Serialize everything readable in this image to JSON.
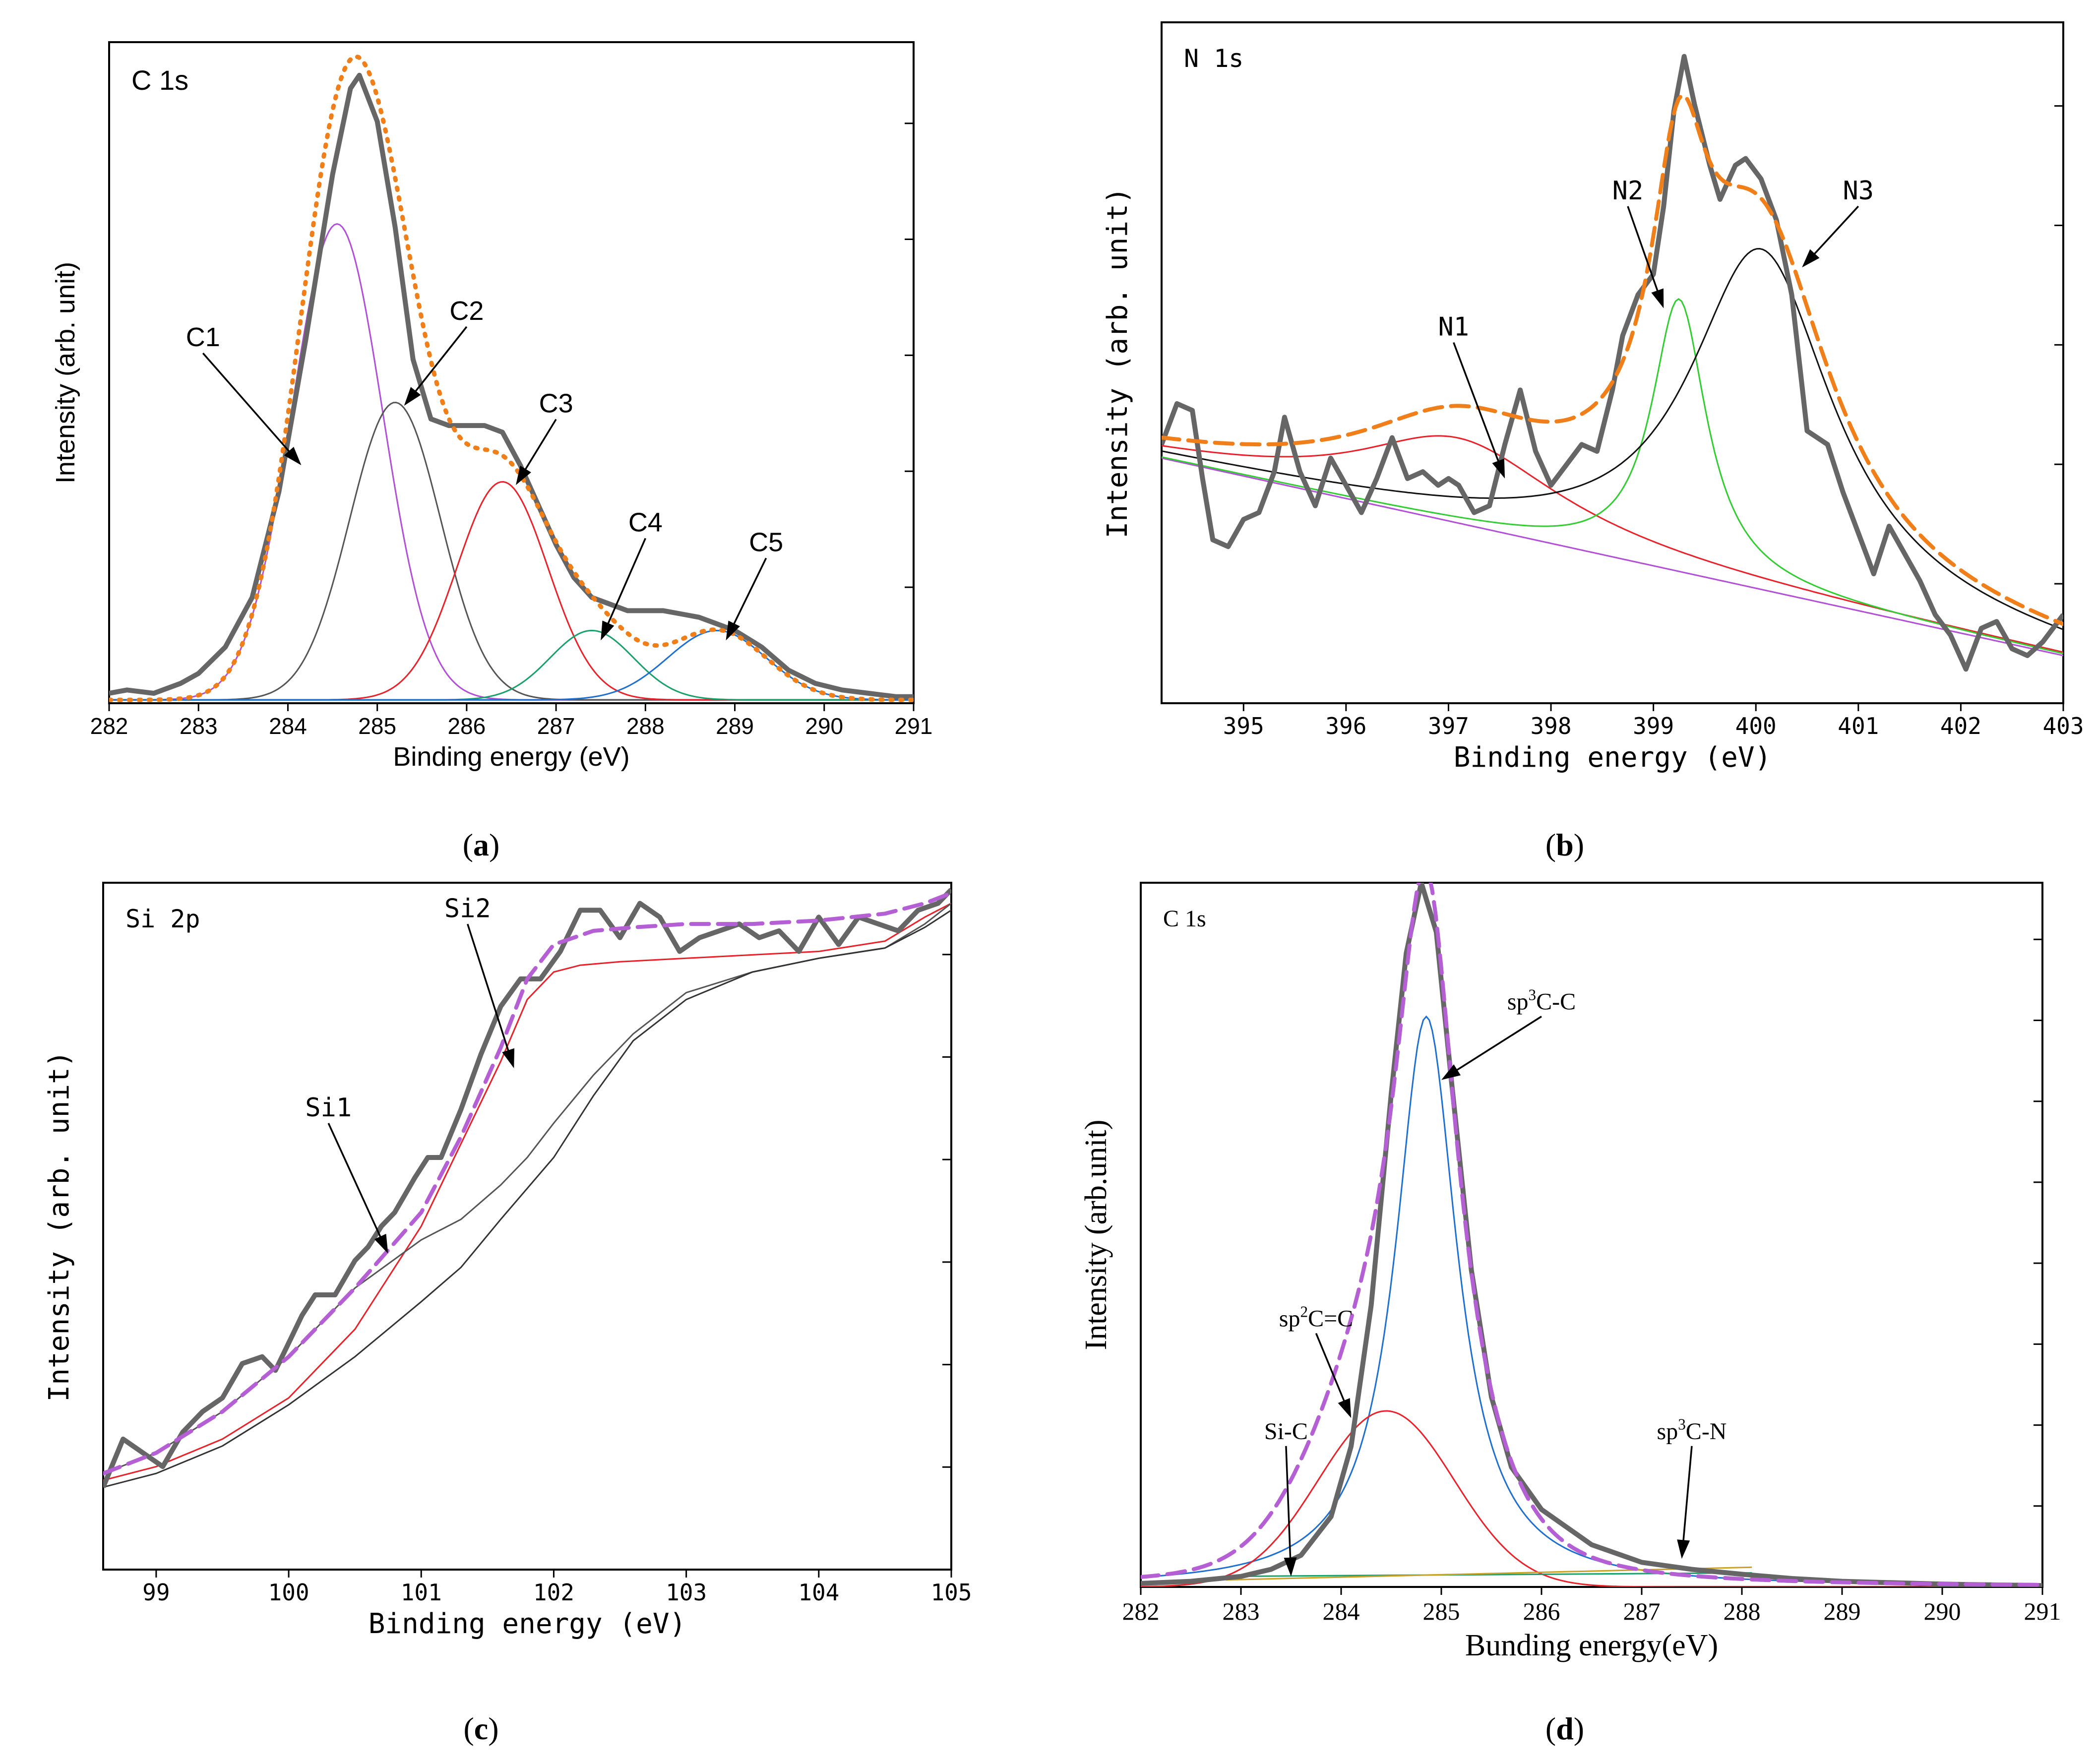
{
  "figure": {
    "panels": [
      {
        "id": "a",
        "caption": "(a)",
        "caption_letter": "a"
      },
      {
        "id": "b",
        "caption": "(b)",
        "caption_letter": "b"
      },
      {
        "id": "c",
        "caption": "(c)",
        "caption_letter": "c"
      },
      {
        "id": "d",
        "caption": "(d)",
        "caption_letter": "d"
      }
    ]
  },
  "chart_data": [
    {
      "panel": "a",
      "type": "line",
      "title": "C 1s",
      "xlabel": "Binding energy (eV)",
      "ylabel": "Intensity (arb. unit)",
      "xlim": [
        282,
        291
      ],
      "xticks": [
        282,
        283,
        284,
        285,
        286,
        287,
        288,
        289,
        290,
        291
      ],
      "xreverse": false,
      "ylim": [
        0,
        1.0
      ],
      "grid": false,
      "colors": {
        "raw": "#666666",
        "envelope": "#f07f1a",
        "C1": "#b14fd6",
        "C2": "#555555",
        "C3": "#e8222a",
        "C4": "#1aa06a",
        "C5": "#1f6fd0",
        "background": "#3a7d2a"
      },
      "series": [
        {
          "name": "C1",
          "type": "peak",
          "center": 284.55,
          "height": 0.72,
          "fwhm": 1.2
        },
        {
          "name": "C2",
          "type": "peak",
          "center": 285.2,
          "height": 0.45,
          "fwhm": 1.2
        },
        {
          "name": "C3",
          "type": "peak",
          "center": 286.4,
          "height": 0.33,
          "fwhm": 1.2
        },
        {
          "name": "C4",
          "type": "peak",
          "center": 287.4,
          "height": 0.105,
          "fwhm": 1.1
        },
        {
          "name": "C5",
          "type": "peak",
          "center": 288.8,
          "height": 0.105,
          "fwhm": 1.3
        }
      ],
      "raw": {
        "x": [
          282,
          282.2,
          282.5,
          282.8,
          283.0,
          283.3,
          283.6,
          283.9,
          284.2,
          284.5,
          284.7,
          284.8,
          285.0,
          285.2,
          285.4,
          285.6,
          285.8,
          286.0,
          286.2,
          286.4,
          286.6,
          286.8,
          287.0,
          287.2,
          287.4,
          287.6,
          287.8,
          288.0,
          288.2,
          288.4,
          288.6,
          288.8,
          289.0,
          289.3,
          289.6,
          289.9,
          290.2,
          290.5,
          290.8,
          291
        ],
        "y": [
          0.015,
          0.02,
          0.015,
          0.03,
          0.045,
          0.085,
          0.16,
          0.32,
          0.55,
          0.8,
          0.93,
          0.95,
          0.88,
          0.72,
          0.52,
          0.43,
          0.42,
          0.42,
          0.42,
          0.41,
          0.36,
          0.3,
          0.24,
          0.19,
          0.16,
          0.15,
          0.14,
          0.14,
          0.14,
          0.135,
          0.13,
          0.12,
          0.11,
          0.085,
          0.05,
          0.03,
          0.02,
          0.015,
          0.01,
          0.01
        ]
      },
      "baseline": 0.005,
      "annotations": [
        {
          "text": "C1",
          "lx": 283.05,
          "ly": 0.54,
          "ax": 284.15,
          "ay": 0.36
        },
        {
          "text": "C2",
          "lx": 286.0,
          "ly": 0.58,
          "ax": 285.3,
          "ay": 0.45
        },
        {
          "text": "C3",
          "lx": 287.0,
          "ly": 0.44,
          "ax": 286.55,
          "ay": 0.33
        },
        {
          "text": "C4",
          "lx": 288.0,
          "ly": 0.26,
          "ax": 287.5,
          "ay": 0.095
        },
        {
          "text": "C5",
          "lx": 289.35,
          "ly": 0.23,
          "ax": 288.9,
          "ay": 0.095
        }
      ]
    },
    {
      "panel": "b",
      "type": "line",
      "title": "N 1s",
      "xlabel": "Binding energy (eV)",
      "ylabel": "Intensity (arb. unit)",
      "xlim": [
        394.2,
        403
      ],
      "xticks": [
        395,
        396,
        397,
        398,
        399,
        400,
        401,
        402,
        403
      ],
      "xreverse": false,
      "ylim": [
        0,
        1.0
      ],
      "grid": false,
      "colors": {
        "raw": "#666666",
        "envelope": "#f07f1a",
        "N1": "#e8222a",
        "N2": "#33cc33",
        "N3": "#111111",
        "background": "#b14fd6"
      },
      "background_line": {
        "x": [
          394.2,
          403
        ],
        "y": [
          0.36,
          0.07
        ]
      },
      "series": [
        {
          "name": "N1",
          "type": "peak",
          "center": 397.1,
          "height": 0.125,
          "fwhm": 2.4
        },
        {
          "name": "N2",
          "type": "peak",
          "center": 399.25,
          "height": 0.4,
          "fwhm": 0.65
        },
        {
          "name": "N3",
          "type": "peak",
          "center": 400.05,
          "height": 0.5,
          "fwhm": 1.7
        }
      ],
      "raw": {
        "x": [
          394.2,
          394.35,
          394.5,
          394.6,
          394.7,
          394.85,
          395.0,
          395.15,
          395.3,
          395.4,
          395.55,
          395.7,
          395.85,
          396.0,
          396.15,
          396.3,
          396.45,
          396.6,
          396.75,
          396.9,
          397.0,
          397.1,
          397.25,
          397.4,
          397.55,
          397.7,
          397.85,
          398.0,
          398.15,
          398.3,
          398.45,
          398.6,
          398.7,
          398.85,
          399.0,
          399.1,
          399.2,
          399.3,
          399.4,
          399.55,
          399.65,
          399.8,
          399.9,
          400.05,
          400.2,
          400.35,
          400.5,
          400.7,
          400.85,
          401.0,
          401.15,
          401.3,
          401.45,
          401.6,
          401.75,
          401.9,
          402.05,
          402.2,
          402.35,
          402.5,
          402.65,
          402.8,
          403
        ],
        "y": [
          0.38,
          0.44,
          0.43,
          0.33,
          0.24,
          0.23,
          0.27,
          0.28,
          0.34,
          0.42,
          0.34,
          0.29,
          0.36,
          0.32,
          0.28,
          0.33,
          0.39,
          0.33,
          0.34,
          0.32,
          0.33,
          0.32,
          0.28,
          0.29,
          0.38,
          0.46,
          0.37,
          0.32,
          0.35,
          0.38,
          0.37,
          0.46,
          0.54,
          0.6,
          0.63,
          0.73,
          0.87,
          0.95,
          0.88,
          0.79,
          0.74,
          0.79,
          0.8,
          0.77,
          0.71,
          0.6,
          0.4,
          0.38,
          0.31,
          0.25,
          0.19,
          0.26,
          0.22,
          0.18,
          0.13,
          0.1,
          0.05,
          0.11,
          0.12,
          0.08,
          0.07,
          0.09,
          0.13
        ]
      },
      "annotations": [
        {
          "text": "N1",
          "lx": 397.05,
          "ly": 0.54,
          "ax": 397.55,
          "ay": 0.33
        },
        {
          "text": "N2",
          "lx": 398.75,
          "ly": 0.74,
          "ax": 399.1,
          "ay": 0.58
        },
        {
          "text": "N3",
          "lx": 401.0,
          "ly": 0.74,
          "ax": 400.45,
          "ay": 0.64
        }
      ]
    },
    {
      "panel": "c",
      "type": "line",
      "title": "Si 2p",
      "xlabel": "Binding energy (eV)",
      "ylabel": "Intensity (arb. unit)",
      "xlim": [
        98.6,
        105
      ],
      "xticks": [
        99,
        100,
        101,
        102,
        103,
        104,
        105
      ],
      "xreverse": false,
      "ylim": [
        0,
        1.0
      ],
      "grid": false,
      "colors": {
        "raw": "#666666",
        "envelope": "#b55fd4",
        "Si1": "#555555",
        "Si2": "#e8222a",
        "background": "#1aa06a"
      },
      "series": [
        {
          "name": "Si2",
          "x": [
            98.6,
            99.0,
            99.5,
            100.0,
            100.5,
            101.0,
            101.3,
            101.6,
            101.8,
            102.0,
            102.2,
            102.5,
            103.0,
            103.5,
            104.0,
            104.5,
            104.8,
            105.0
          ],
          "y": [
            0.13,
            0.15,
            0.19,
            0.25,
            0.35,
            0.5,
            0.62,
            0.74,
            0.83,
            0.87,
            0.88,
            0.885,
            0.89,
            0.895,
            0.9,
            0.915,
            0.95,
            0.97
          ]
        },
        {
          "name": "Si1",
          "x": [
            98.6,
            99.0,
            99.5,
            100.0,
            100.5,
            101.0,
            101.3,
            101.6,
            101.8,
            102.0,
            102.3,
            102.6,
            103.0,
            103.5,
            104.0,
            104.5,
            104.8,
            105.0
          ],
          "y": [
            0.14,
            0.17,
            0.23,
            0.31,
            0.41,
            0.48,
            0.51,
            0.56,
            0.6,
            0.65,
            0.72,
            0.78,
            0.84,
            0.87,
            0.89,
            0.905,
            0.94,
            0.97
          ]
        },
        {
          "name": "Si",
          "x": [
            98.6,
            99.0,
            99.5,
            100.0,
            100.5,
            101.0,
            101.3,
            101.6,
            102.0,
            102.3,
            102.6,
            103.0,
            103.5,
            104.0,
            104.5,
            104.8,
            105.0
          ],
          "y": [
            0.12,
            0.14,
            0.18,
            0.24,
            0.31,
            0.39,
            0.44,
            0.51,
            0.6,
            0.69,
            0.77,
            0.83,
            0.87,
            0.89,
            0.905,
            0.935,
            0.96
          ]
        }
      ],
      "envelope": {
        "x": [
          98.6,
          99.0,
          99.5,
          100.0,
          100.5,
          101.0,
          101.3,
          101.6,
          101.8,
          102.0,
          102.3,
          102.6,
          103.0,
          103.5,
          104.0,
          104.5,
          104.8,
          105.0
        ],
        "y": [
          0.14,
          0.17,
          0.23,
          0.31,
          0.41,
          0.52,
          0.63,
          0.76,
          0.86,
          0.91,
          0.93,
          0.935,
          0.94,
          0.94,
          0.945,
          0.955,
          0.97,
          0.985
        ]
      },
      "raw": {
        "x": [
          98.6,
          98.75,
          98.9,
          99.05,
          99.2,
          99.35,
          99.5,
          99.65,
          99.8,
          99.9,
          100.0,
          100.1,
          100.2,
          100.35,
          100.5,
          100.6,
          100.7,
          100.8,
          100.95,
          101.05,
          101.15,
          101.3,
          101.45,
          101.6,
          101.75,
          101.9,
          102.05,
          102.2,
          102.35,
          102.5,
          102.65,
          102.8,
          102.95,
          103.1,
          103.25,
          103.4,
          103.55,
          103.7,
          103.85,
          104.0,
          104.15,
          104.3,
          104.45,
          104.6,
          104.75,
          104.9,
          105.0
        ],
        "y": [
          0.12,
          0.19,
          0.17,
          0.15,
          0.2,
          0.23,
          0.25,
          0.3,
          0.31,
          0.29,
          0.33,
          0.37,
          0.4,
          0.4,
          0.45,
          0.47,
          0.5,
          0.52,
          0.57,
          0.6,
          0.6,
          0.67,
          0.75,
          0.82,
          0.86,
          0.86,
          0.9,
          0.96,
          0.96,
          0.92,
          0.97,
          0.95,
          0.9,
          0.92,
          0.93,
          0.94,
          0.92,
          0.93,
          0.9,
          0.95,
          0.91,
          0.95,
          0.94,
          0.93,
          0.96,
          0.97,
          0.99
        ]
      },
      "annotations": [
        {
          "text": "Si1",
          "lx": 100.3,
          "ly": 0.66,
          "ax": 100.75,
          "ay": 0.46
        },
        {
          "text": "Si2",
          "lx": 101.35,
          "ly": 0.95,
          "ax": 101.7,
          "ay": 0.73
        }
      ]
    },
    {
      "panel": "d",
      "type": "line",
      "title": "C 1s",
      "xlabel": "Bunding energy(eV)",
      "ylabel": "Intensity (arb.unit)",
      "xlim": [
        282,
        291
      ],
      "xticks": [
        282,
        283,
        284,
        285,
        286,
        287,
        288,
        289,
        290,
        291
      ],
      "xreverse": false,
      "ylim": [
        0,
        1.0
      ],
      "grid": false,
      "colors": {
        "raw": "#666666",
        "envelope": "#b55fd4",
        "sp3C-C": "#1f6fd0",
        "sp2C=C": "#e8222a",
        "Si-C": "#1aa06a",
        "sp3C-N": "#c9a227"
      },
      "series": [
        {
          "name": "sp3C-C",
          "type": "peak",
          "center": 284.85,
          "height": 0.81,
          "fwhm": 0.75
        },
        {
          "name": "sp2C=C",
          "type": "peak",
          "center": 284.45,
          "height": 0.25,
          "fwhm": 1.6
        },
        {
          "name": "Si-C",
          "type": "flat",
          "x": [
            282.85,
            288.1
          ],
          "y": [
            0.015,
            0.02
          ]
        },
        {
          "name": "sp3C-N",
          "type": "flat",
          "x": [
            282.85,
            288.1
          ],
          "y": [
            0.01,
            0.028
          ]
        }
      ],
      "raw": {
        "x": [
          282,
          282.5,
          283.0,
          283.3,
          283.6,
          283.9,
          284.1,
          284.3,
          284.5,
          284.65,
          284.8,
          284.95,
          285.1,
          285.3,
          285.5,
          285.7,
          286.0,
          286.5,
          287.0,
          287.5,
          288.0,
          288.5,
          289.0,
          290.0,
          291
        ],
        "y": [
          0.005,
          0.008,
          0.015,
          0.025,
          0.045,
          0.1,
          0.2,
          0.4,
          0.7,
          0.9,
          1.0,
          0.93,
          0.72,
          0.45,
          0.27,
          0.17,
          0.11,
          0.06,
          0.035,
          0.025,
          0.018,
          0.012,
          0.008,
          0.004,
          0.002
        ]
      },
      "annotations": [
        {
          "text": "sp3C-C",
          "sup": "3",
          "pre": "sp",
          "post": "C-C",
          "lx": 286.0,
          "ly": 0.82,
          "ax": 285.0,
          "ay": 0.72
        },
        {
          "text": "sp2C=C",
          "sup": "2",
          "pre": "sp",
          "post": "C=C",
          "lx": 283.75,
          "ly": 0.37,
          "ax": 284.1,
          "ay": 0.24
        },
        {
          "text": "Si-C",
          "sup": "",
          "pre": "Si-C",
          "post": "",
          "lx": 283.45,
          "ly": 0.21,
          "ax": 283.5,
          "ay": 0.015
        },
        {
          "text": "sp3C-N",
          "sup": "3",
          "pre": "sp",
          "post": "C-N",
          "lx": 287.5,
          "ly": 0.21,
          "ax": 287.4,
          "ay": 0.04
        }
      ]
    }
  ]
}
